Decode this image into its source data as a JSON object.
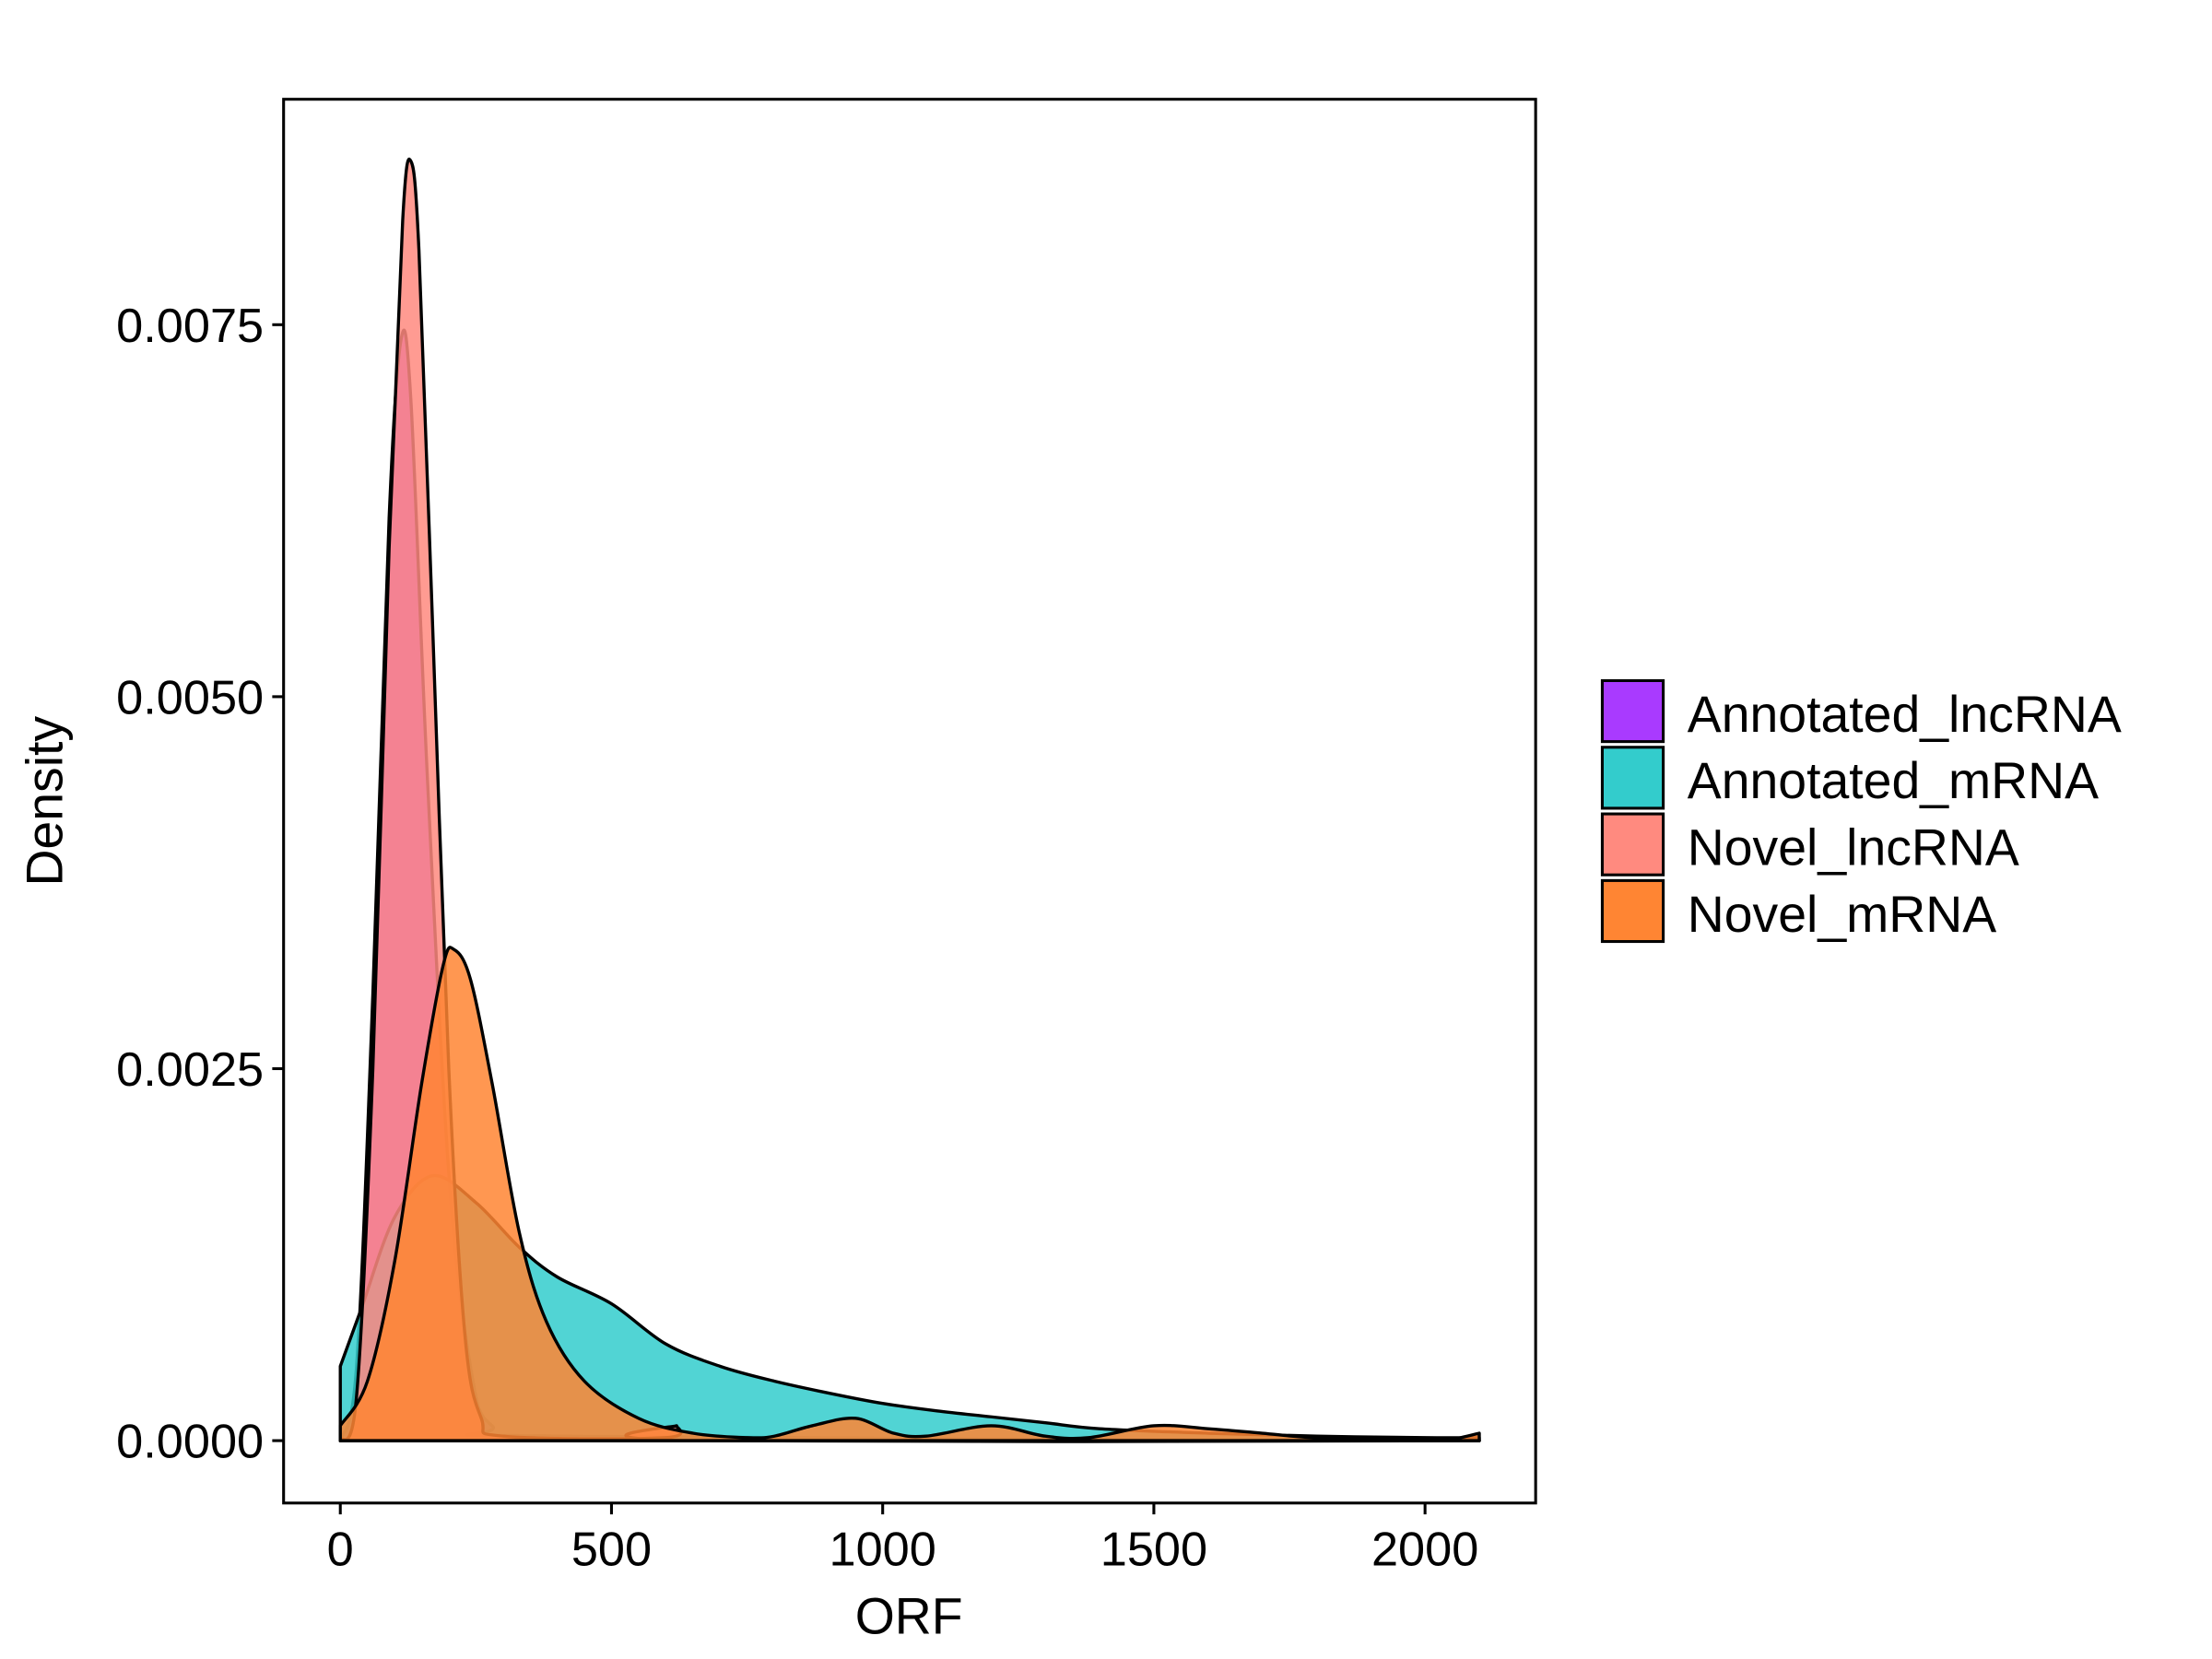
{
  "chart_data": {
    "type": "area",
    "subtype": "density",
    "title": "",
    "xlabel": "ORF",
    "ylabel": "Density",
    "xlim": [
      -105,
      2200
    ],
    "ylim": [
      -0.00042,
      0.00903
    ],
    "xticks": [
      0,
      500,
      1000,
      1500,
      2000
    ],
    "xtick_labels": [
      "0",
      "500",
      "1000",
      "1500",
      "2000"
    ],
    "yticks": [
      0,
      0.0025,
      0.005,
      0.0075
    ],
    "ytick_labels": [
      "0.0000",
      "0.0025",
      "0.0050",
      "0.0075"
    ],
    "grid": false,
    "legend_position": "right",
    "series": [
      {
        "name": "Annotated_lncRNA",
        "color": "#A93AFF",
        "points": [
          [
            0,
            0
          ],
          [
            30,
            0.0005
          ],
          [
            60,
            0.003
          ],
          [
            90,
            0.0062
          ],
          [
            112,
            0.0074
          ],
          [
            130,
            0.007
          ],
          [
            160,
            0.0045
          ],
          [
            200,
            0.0018
          ],
          [
            240,
            0.0005
          ],
          [
            280,
            0.0001
          ],
          [
            400,
            3e-05
          ],
          [
            2100,
            0
          ]
        ]
      },
      {
        "name": "Annotated_mRNA",
        "color": "#33CCCC",
        "points": [
          [
            0,
            0.0005
          ],
          [
            40,
            0.0009
          ],
          [
            100,
            0.0015
          ],
          [
            170,
            0.00178
          ],
          [
            250,
            0.0016
          ],
          [
            330,
            0.0013
          ],
          [
            400,
            0.0011
          ],
          [
            500,
            0.00092
          ],
          [
            600,
            0.00065
          ],
          [
            700,
            0.0005
          ],
          [
            800,
            0.0004
          ],
          [
            900,
            0.00032
          ],
          [
            1000,
            0.00025
          ],
          [
            1100,
            0.0002
          ],
          [
            1200,
            0.00016
          ],
          [
            1300,
            0.00012
          ],
          [
            1400,
            8e-05
          ],
          [
            1600,
            5e-05
          ],
          [
            1800,
            3e-05
          ],
          [
            2000,
            2e-05
          ],
          [
            2100,
            2e-05
          ]
        ]
      },
      {
        "name": "Novel_lncRNA",
        "color": "#FF8A7F",
        "points": [
          [
            0,
            0
          ],
          [
            30,
            0.0003
          ],
          [
            60,
            0.0025
          ],
          [
            90,
            0.006
          ],
          [
            115,
            0.0082
          ],
          [
            130,
            0.0086
          ],
          [
            145,
            0.008
          ],
          [
            170,
            0.0055
          ],
          [
            200,
            0.0025
          ],
          [
            230,
            0.0007
          ],
          [
            260,
            0.00015
          ],
          [
            300,
            3e-05
          ],
          [
            600,
            2e-05
          ],
          [
            620,
            0.0001
          ],
          [
            640,
            0
          ],
          [
            2100,
            0
          ]
        ]
      },
      {
        "name": "Novel_mRNA",
        "color": "#FF8533",
        "points": [
          [
            0,
            0.0001
          ],
          [
            50,
            0.0004
          ],
          [
            100,
            0.0012
          ],
          [
            150,
            0.0024
          ],
          [
            190,
            0.0032
          ],
          [
            210,
            0.0033
          ],
          [
            240,
            0.0031
          ],
          [
            280,
            0.0024
          ],
          [
            330,
            0.0014
          ],
          [
            380,
            0.0008
          ],
          [
            450,
            0.0004
          ],
          [
            550,
            0.00015
          ],
          [
            650,
            5e-05
          ],
          [
            750,
            2e-05
          ],
          [
            800,
            3e-05
          ],
          [
            870,
            0.0001
          ],
          [
            950,
            0.00015
          ],
          [
            1020,
            5e-05
          ],
          [
            1080,
            3e-05
          ],
          [
            1200,
            0.0001
          ],
          [
            1300,
            3e-05
          ],
          [
            1380,
            2e-05
          ],
          [
            1500,
            0.0001
          ],
          [
            1600,
            8e-05
          ],
          [
            1700,
            5e-05
          ],
          [
            1800,
            2e-05
          ],
          [
            2000,
            1e-05
          ],
          [
            2050,
            1e-05
          ],
          [
            2100,
            5e-05
          ]
        ]
      }
    ]
  }
}
